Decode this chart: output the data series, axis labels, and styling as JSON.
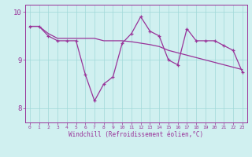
{
  "x": [
    0,
    1,
    2,
    3,
    4,
    5,
    6,
    7,
    8,
    9,
    10,
    11,
    12,
    13,
    14,
    15,
    16,
    17,
    18,
    19,
    20,
    21,
    22,
    23
  ],
  "y_main": [
    9.7,
    9.7,
    9.5,
    9.4,
    9.4,
    9.4,
    8.7,
    8.15,
    8.5,
    8.65,
    9.35,
    9.55,
    9.9,
    9.6,
    9.5,
    9.0,
    8.9,
    9.65,
    9.4,
    9.4,
    9.4,
    9.3,
    9.2,
    8.75
  ],
  "y_trend": [
    9.7,
    9.7,
    9.55,
    9.45,
    9.45,
    9.45,
    9.45,
    9.45,
    9.4,
    9.4,
    9.4,
    9.38,
    9.35,
    9.32,
    9.28,
    9.2,
    9.15,
    9.1,
    9.05,
    9.0,
    8.95,
    8.9,
    8.85,
    8.8
  ],
  "bg_color": "#d0f0f0",
  "line_color": "#993399",
  "grid_color": "#a0d8d8",
  "xlabel": "Windchill (Refroidissement éolien,°C)",
  "ylim": [
    7.7,
    10.15
  ],
  "xlim": [
    -0.5,
    23.5
  ],
  "yticks": [
    8,
    9,
    10
  ],
  "xticks": [
    0,
    1,
    2,
    3,
    4,
    5,
    6,
    7,
    8,
    9,
    10,
    11,
    12,
    13,
    14,
    15,
    16,
    17,
    18,
    19,
    20,
    21,
    22,
    23
  ]
}
